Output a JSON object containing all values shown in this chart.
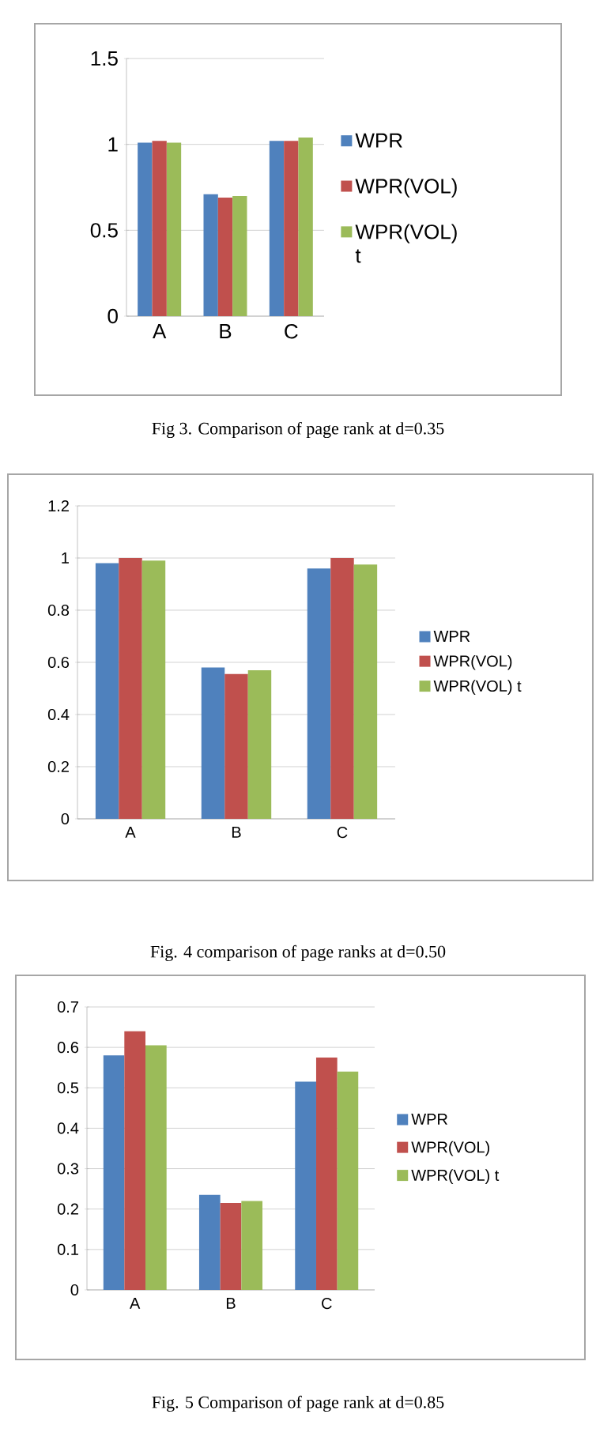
{
  "chart_data": [
    {
      "type": "bar",
      "categories": [
        "A",
        "B",
        "C"
      ],
      "series": [
        {
          "name": "WPR",
          "color": "#4f81bd",
          "values": [
            1.01,
            0.71,
            1.02
          ]
        },
        {
          "name": "WPR(VOL)",
          "color": "#c0504d",
          "values": [
            1.02,
            0.69,
            1.02
          ]
        },
        {
          "name": "WPR(VOL) t",
          "color": "#9bbb59",
          "values": [
            1.01,
            0.7,
            1.04
          ]
        }
      ],
      "ylim": [
        0,
        1.5
      ],
      "yticks": [
        0,
        0.5,
        1,
        1.5
      ],
      "grid": "y",
      "legend": "right",
      "annotations": [
        "Fig 3. Comparison of page rank at d=0.35"
      ]
    },
    {
      "type": "bar",
      "categories": [
        "A",
        "B",
        "C"
      ],
      "series": [
        {
          "name": "WPR",
          "color": "#4f81bd",
          "values": [
            0.98,
            0.58,
            0.96
          ]
        },
        {
          "name": "WPR(VOL)",
          "color": "#c0504d",
          "values": [
            1.0,
            0.555,
            1.0
          ]
        },
        {
          "name": "WPR(VOL) t",
          "color": "#9bbb59",
          "values": [
            0.99,
            0.57,
            0.975
          ]
        }
      ],
      "ylim": [
        0,
        1.2
      ],
      "yticks": [
        0,
        0.2,
        0.4,
        0.6,
        0.8,
        1,
        1.2
      ],
      "grid": "y",
      "legend": "right",
      "annotations": [
        "Fig. 4 comparison of page ranks at d=0.50"
      ]
    },
    {
      "type": "bar",
      "categories": [
        "A",
        "B",
        "C"
      ],
      "series": [
        {
          "name": "WPR",
          "color": "#4f81bd",
          "values": [
            0.58,
            0.235,
            0.515
          ]
        },
        {
          "name": "WPR(VOL)",
          "color": "#c0504d",
          "values": [
            0.64,
            0.215,
            0.575
          ]
        },
        {
          "name": "WPR(VOL) t",
          "color": "#9bbb59",
          "values": [
            0.605,
            0.22,
            0.54
          ]
        }
      ],
      "ylim": [
        0,
        0.7
      ],
      "yticks": [
        0,
        0.1,
        0.2,
        0.3,
        0.4,
        0.5,
        0.6,
        0.7
      ],
      "grid": "y",
      "legend": "right",
      "annotations": [
        "Fig. 5 Comparison of page rank at d=0.85"
      ]
    }
  ]
}
